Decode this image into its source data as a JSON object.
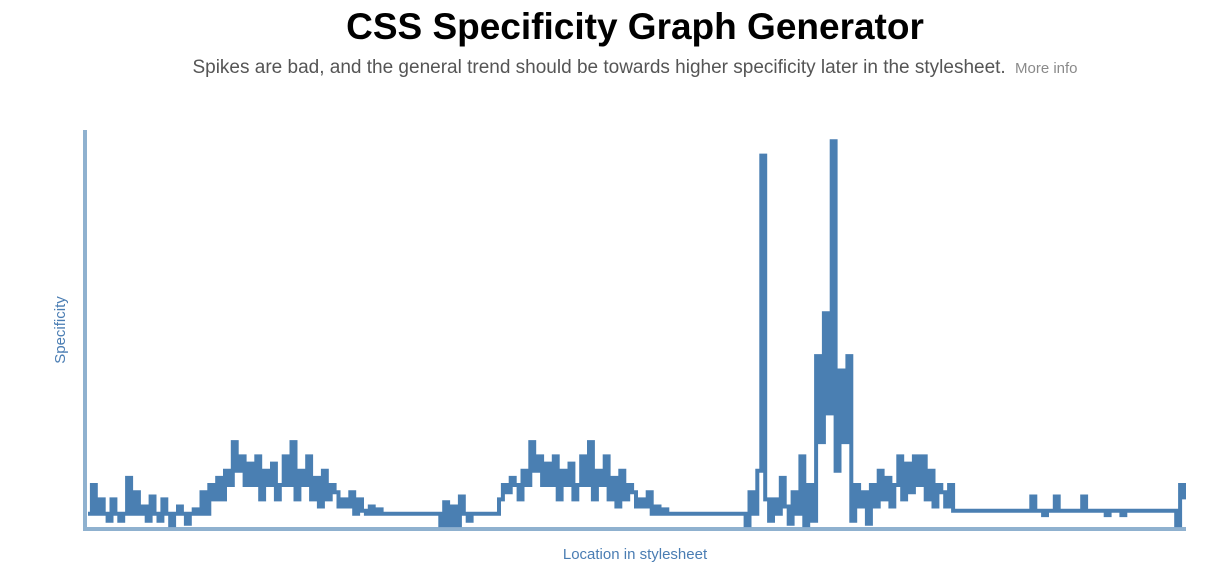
{
  "header": {
    "title": "CSS Specificity Graph Generator",
    "subtitle": "Spikes are bad, and the general trend should be towards higher specificity later in the stylesheet.",
    "more_info_label": "More info"
  },
  "colors": {
    "line": "#4a7fb2",
    "axis": "#8fb1cf",
    "axis_label": "#4a7db3"
  },
  "chart_data": {
    "type": "line",
    "title": "",
    "xlabel": "Location in stylesheet",
    "ylabel": "Specificity",
    "xlim": [
      0,
      1000
    ],
    "ylim": [
      0,
      28
    ],
    "grid": false,
    "legend": "none",
    "series": [
      {
        "values": [
          1,
          3,
          1,
          2,
          1,
          0.5,
          2,
          1,
          0.5,
          1,
          3.5,
          1,
          2.5,
          1,
          1.5,
          0.5,
          2.2,
          1,
          0.5,
          2,
          1,
          0.2,
          1,
          1.5,
          1,
          0.3,
          1,
          1.3,
          1,
          2.5,
          1,
          3,
          2,
          3.5,
          2,
          4,
          3,
          6,
          4,
          5,
          3,
          4.5,
          3,
          5,
          2,
          4,
          3,
          4.5,
          2,
          3,
          5,
          3,
          6,
          2,
          4,
          3,
          5,
          2,
          3.5,
          1.5,
          4,
          2,
          3,
          2.5,
          1.5,
          2,
          1.5,
          2.5,
          1,
          2,
          1.2,
          1,
          1.5,
          1,
          1.3,
          1,
          1,
          1,
          1,
          1,
          1,
          1,
          1,
          1,
          1,
          1,
          1,
          1,
          1,
          1,
          0.2,
          1.8,
          0.2,
          1.5,
          0.2,
          2.2,
          1,
          0.5,
          1,
          1,
          1,
          1,
          1,
          1,
          1,
          2,
          3,
          2.5,
          3.5,
          3,
          2,
          4,
          3,
          6,
          4,
          5,
          3,
          4.5,
          3,
          5,
          2,
          4,
          3,
          4.5,
          2,
          3,
          5,
          3,
          6,
          2,
          4,
          3,
          5,
          2,
          3.5,
          1.5,
          4,
          2,
          3,
          2.5,
          1.5,
          2,
          1.5,
          2.5,
          1,
          1.5,
          1,
          1.3,
          1,
          1,
          1,
          1,
          1,
          1,
          1,
          1,
          1,
          1,
          1,
          1,
          1,
          1,
          1,
          1,
          1,
          1,
          1,
          1,
          0.2,
          2.5,
          1,
          4,
          26,
          2,
          0.5,
          2,
          1,
          3.5,
          1.5,
          0.3,
          2.5,
          1,
          5,
          0.2,
          3,
          0.5,
          12,
          6,
          15,
          8,
          27,
          4,
          11,
          6,
          12,
          0.5,
          3,
          1.5,
          2.5,
          0.3,
          3,
          1.5,
          4,
          2,
          3.5,
          1.5,
          3,
          5,
          2,
          4.5,
          2.5,
          5,
          3,
          5,
          2,
          4,
          1.5,
          3,
          2.5,
          1.5,
          3,
          1.2,
          1.2,
          1.2,
          1.2,
          1.2,
          1.2,
          1.2,
          1.2,
          1.2,
          1.2,
          1.2,
          1.2,
          1.2,
          1.2,
          1.2,
          1.2,
          1.2,
          1.2,
          1.2,
          1.2,
          2.2,
          1.2,
          1.2,
          0.9,
          1.2,
          1.2,
          2.2,
          1.2,
          1.2,
          1.2,
          1.2,
          1.2,
          1.2,
          2.2,
          1.2,
          1.2,
          1.2,
          1.2,
          1.2,
          0.9,
          1.2,
          1.2,
          1.2,
          0.9,
          1.2,
          1.2,
          1.2,
          1.2,
          1.2,
          1.2,
          1.2,
          1.2,
          1.2,
          1.2,
          1.2,
          1.2,
          1.2,
          0.2,
          3,
          2
        ]
      }
    ]
  }
}
